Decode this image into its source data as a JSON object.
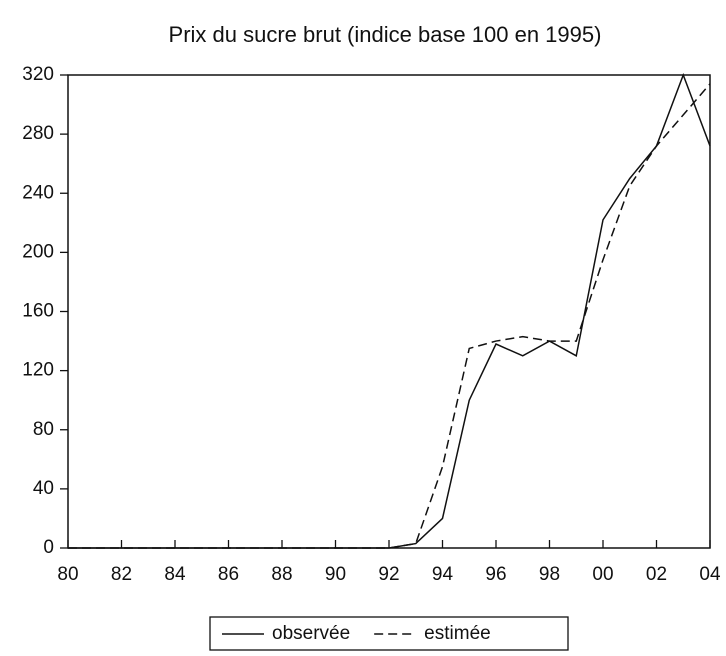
{
  "chart_data": {
    "type": "line",
    "title": "Prix du sucre brut (indice base 100 en 1995)",
    "x": [
      1980,
      1981,
      1982,
      1983,
      1984,
      1985,
      1986,
      1987,
      1988,
      1989,
      1990,
      1991,
      1992,
      1993,
      1994,
      1995,
      1996,
      1997,
      1998,
      1999,
      2000,
      2001,
      2002,
      2003,
      2004
    ],
    "series": [
      {
        "name": "observée",
        "color": "#111111",
        "style": "solid",
        "values": [
          0,
          0,
          0,
          0,
          0,
          0,
          0,
          0,
          0,
          0,
          0,
          0,
          0,
          3,
          20,
          100,
          138,
          130,
          140,
          130,
          222,
          250,
          272,
          320,
          272
        ]
      },
      {
        "name": "estimée",
        "color": "#111111",
        "style": "dashed",
        "values": [
          0,
          0,
          0,
          0,
          0,
          0,
          0,
          0,
          0,
          0,
          0,
          0,
          0,
          3,
          55,
          135,
          140,
          143,
          140,
          140,
          195,
          245,
          272,
          293,
          314
        ]
      }
    ],
    "xlim": [
      1980,
      2004
    ],
    "xticks": [
      {
        "value": 1980,
        "label": "80"
      },
      {
        "value": 1982,
        "label": "82"
      },
      {
        "value": 1984,
        "label": "84"
      },
      {
        "value": 1986,
        "label": "86"
      },
      {
        "value": 1988,
        "label": "88"
      },
      {
        "value": 1990,
        "label": "90"
      },
      {
        "value": 1992,
        "label": "92"
      },
      {
        "value": 1994,
        "label": "94"
      },
      {
        "value": 1996,
        "label": "96"
      },
      {
        "value": 1998,
        "label": "98"
      },
      {
        "value": 2000,
        "label": "00"
      },
      {
        "value": 2002,
        "label": "02"
      },
      {
        "value": 2004,
        "label": "04"
      }
    ],
    "ylim": [
      0,
      320
    ],
    "yticks": [
      0,
      40,
      80,
      120,
      160,
      200,
      240,
      280,
      320
    ],
    "grid": false,
    "legend": "bottom"
  }
}
